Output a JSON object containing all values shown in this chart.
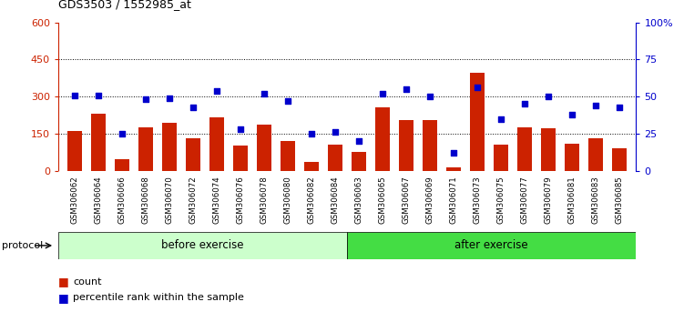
{
  "title": "GDS3503 / 1552985_at",
  "samples": [
    "GSM306062",
    "GSM306064",
    "GSM306066",
    "GSM306068",
    "GSM306070",
    "GSM306072",
    "GSM306074",
    "GSM306076",
    "GSM306078",
    "GSM306080",
    "GSM306082",
    "GSM306084",
    "GSM306063",
    "GSM306065",
    "GSM306067",
    "GSM306069",
    "GSM306071",
    "GSM306073",
    "GSM306075",
    "GSM306077",
    "GSM306079",
    "GSM306081",
    "GSM306083",
    "GSM306085"
  ],
  "counts": [
    160,
    230,
    45,
    175,
    195,
    130,
    215,
    100,
    185,
    120,
    35,
    105,
    75,
    255,
    205,
    205,
    15,
    395,
    105,
    175,
    170,
    110,
    130,
    90
  ],
  "percentiles": [
    51,
    51,
    25,
    48,
    49,
    43,
    54,
    28,
    52,
    47,
    25,
    26,
    20,
    52,
    55,
    50,
    12,
    56,
    35,
    45,
    50,
    38,
    44,
    43
  ],
  "before_exercise_count": 12,
  "ylim_left": [
    0,
    600
  ],
  "ylim_right": [
    0,
    100
  ],
  "yticks_left": [
    0,
    150,
    300,
    450,
    600
  ],
  "yticks_right": [
    0,
    25,
    50,
    75,
    100
  ],
  "bar_color": "#cc2200",
  "dot_color": "#0000cc",
  "before_color": "#ccffcc",
  "after_color": "#44dd44",
  "bg_color": "#ffffff",
  "left_axis_color": "#cc2200",
  "right_axis_color": "#0000cc",
  "title_str": "GDS3503 / 1552985_at",
  "protocol_label": "protocol",
  "before_label": "before exercise",
  "after_label": "after exercise",
  "legend_count": "count",
  "legend_percentile": "percentile rank within the sample",
  "grid_dotted_levels": [
    150,
    300,
    450
  ]
}
